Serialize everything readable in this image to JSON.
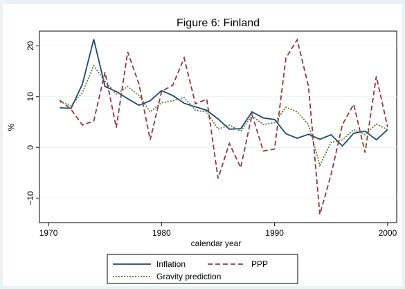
{
  "chart_data": {
    "type": "line",
    "title": "Figure 6: Finland",
    "x": [
      1971,
      1972,
      1973,
      1974,
      1975,
      1976,
      1977,
      1978,
      1979,
      1980,
      1981,
      1982,
      1983,
      1984,
      1985,
      1986,
      1987,
      1988,
      1989,
      1990,
      1991,
      1992,
      1993,
      1994,
      1995,
      1996,
      1997,
      1998,
      1999,
      2000
    ],
    "series": [
      {
        "name": "Inflation",
        "color": "#1a476f",
        "dash": "solid",
        "values": [
          7.8,
          7.7,
          12.5,
          21.3,
          12,
          11,
          9.6,
          8.3,
          9.2,
          11.2,
          10.2,
          8.7,
          8.0,
          7.3,
          5.6,
          3.6,
          3.7,
          7,
          5.8,
          5.5,
          2.7,
          1.8,
          2.6,
          1.6,
          2.5,
          0.3,
          2.8,
          3.2,
          1.5,
          3.5
        ]
      },
      {
        "name": "PPP",
        "color": "#90353b",
        "dash": "dashed",
        "values": [
          9.3,
          7.5,
          4.4,
          5.2,
          14.8,
          3.9,
          18.8,
          12.5,
          1.5,
          11,
          12.3,
          17.6,
          8.6,
          9.5,
          -6.1,
          0.8,
          -4,
          6.5,
          -0.7,
          -0.3,
          17.6,
          21.2,
          12,
          -13.2,
          -5.3,
          4.5,
          8.5,
          -1,
          14,
          4
        ]
      },
      {
        "name": "Gravity prediction",
        "color": "#55752f",
        "dash": "dotted",
        "values": [
          9,
          8.2,
          10.8,
          16.1,
          13,
          10.5,
          12,
          10.2,
          7,
          8.8,
          9.2,
          9.8,
          7.3,
          7,
          3.6,
          4.4,
          3.2,
          6.3,
          4.5,
          4.9,
          7.9,
          7,
          4.5,
          -3.5,
          1,
          1.5,
          3.5,
          2.5,
          4.6,
          3.5
        ]
      }
    ],
    "xlabel": "calendar year",
    "ylabel": "%",
    "xlim": [
      1969.2,
      2000.8
    ],
    "xticks": [
      1970,
      1980,
      1990,
      2000
    ],
    "ylim": [
      -14.8,
      22.9
    ],
    "yticks": [
      {
        "value": -10,
        "label": "−10"
      },
      0,
      10,
      20
    ],
    "grid": true,
    "legend": "bottom"
  }
}
